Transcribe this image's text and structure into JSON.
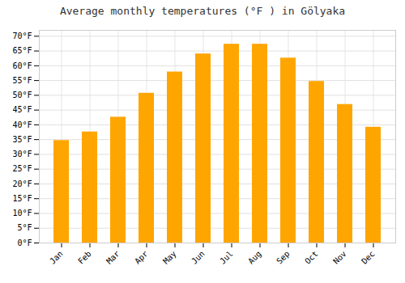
{
  "chart_data": {
    "type": "bar",
    "title": "Average monthly temperatures (°F ) in Gölyaka",
    "categories": [
      "Jan",
      "Feb",
      "Mar",
      "Apr",
      "May",
      "Jun",
      "Jul",
      "Aug",
      "Sep",
      "Oct",
      "Nov",
      "Dec"
    ],
    "values": [
      34.7,
      37.6,
      42.6,
      50.7,
      57.9,
      64.0,
      67.3,
      67.3,
      62.6,
      54.7,
      46.9,
      39.2
    ],
    "color": "#FFA500",
    "ylim": [
      0,
      72
    ],
    "yticks": [
      {
        "value": 0,
        "label": "0°F"
      },
      {
        "value": 5,
        "label": "5°F"
      },
      {
        "value": 10,
        "label": "10°F"
      },
      {
        "value": 15,
        "label": "15°F"
      },
      {
        "value": 20,
        "label": "20°F"
      },
      {
        "value": 25,
        "label": "25°F"
      },
      {
        "value": 30,
        "label": "30°F"
      },
      {
        "value": 35,
        "label": "35°F"
      },
      {
        "value": 40,
        "label": "40°F"
      },
      {
        "value": 45,
        "label": "45°F"
      },
      {
        "value": 50,
        "label": "50°F"
      },
      {
        "value": 55,
        "label": "55°F"
      },
      {
        "value": 60,
        "label": "60°F"
      },
      {
        "value": 65,
        "label": "65°F"
      },
      {
        "value": 70,
        "label": "70°F"
      }
    ],
    "grid": true
  }
}
